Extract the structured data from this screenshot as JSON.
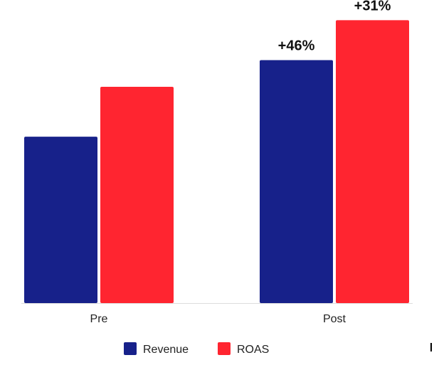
{
  "chart_data": {
    "type": "bar",
    "categories": [
      "Pre",
      "Post"
    ],
    "series": [
      {
        "name": "Revenue",
        "color": "#17218a",
        "values": [
          100,
          146
        ],
        "labels": [
          "",
          "+46%"
        ]
      },
      {
        "name": "ROAS",
        "color": "#ff2530",
        "values": [
          130,
          170
        ],
        "labels": [
          "",
          "+31%"
        ]
      }
    ],
    "ylim": [
      0,
      180
    ],
    "grid": false,
    "legend_position": "bottom"
  }
}
